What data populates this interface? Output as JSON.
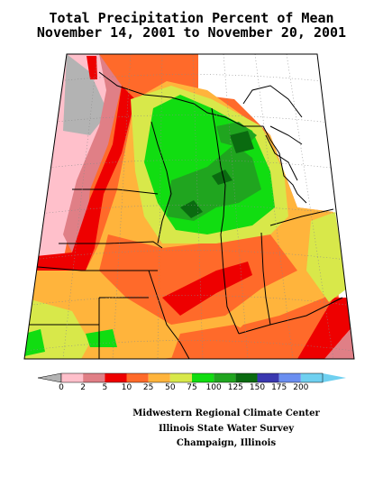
{
  "title": {
    "line1": "Total Precipitation Percent of Mean",
    "line2": "November 14, 2001 to November 20, 2001"
  },
  "legend": {
    "bins": [
      {
        "label": "0",
        "color": "#ffc0cb"
      },
      {
        "label": "2",
        "color": "#e07f86"
      },
      {
        "label": "5",
        "color": "#ee0000"
      },
      {
        "label": "10",
        "color": "#ff6a2a"
      },
      {
        "label": "25",
        "color": "#ffb43c"
      },
      {
        "label": "50",
        "color": "#d8e84a"
      },
      {
        "label": "75",
        "color": "#11dd11"
      },
      {
        "label": "100",
        "color": "#20a51f"
      },
      {
        "label": "125",
        "color": "#0a6b10"
      },
      {
        "label": "150",
        "color": "#3a38b0"
      },
      {
        "label": "175",
        "color": "#6a8ef0"
      },
      {
        "label": "200",
        "color": "#6fd0f0"
      }
    ],
    "below_color": "#b3b3b3"
  },
  "credits": {
    "line1": "Midwestern Regional Climate Center",
    "line2": "Illinois State Water Survey",
    "line3": "Champaign, Illinois"
  },
  "colors": {
    "no_data": "#ffffff",
    "dark_gray": "#b3b3b3"
  }
}
